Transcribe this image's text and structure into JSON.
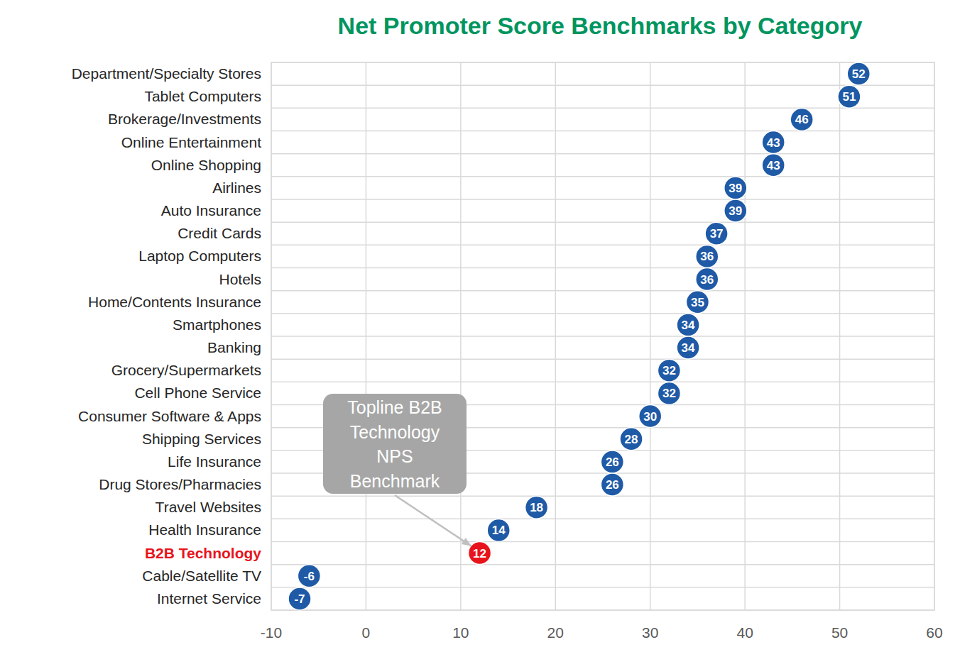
{
  "chart_data": {
    "type": "dot",
    "title": "Net Promoter Score Benchmarks by Category",
    "orientation": "horizontal",
    "categories": [
      "Department/Specialty Stores",
      "Tablet Computers",
      "Brokerage/Investments",
      "Online Entertainment",
      "Online Shopping",
      "Airlines",
      "Auto Insurance",
      "Credit Cards",
      "Laptop Computers",
      "Hotels",
      "Home/Contents Insurance",
      "Smartphones",
      "Banking",
      "Grocery/Supermarkets",
      "Cell Phone Service",
      "Consumer Software & Apps",
      "Shipping Services",
      "Life Insurance",
      "Drug Stores/Pharmacies",
      "Travel Websites",
      "Health Insurance",
      "B2B Technology",
      "Cable/Satellite TV",
      "Internet Service"
    ],
    "values": [
      52,
      51,
      46,
      43,
      43,
      39,
      39,
      37,
      36,
      36,
      35,
      34,
      34,
      32,
      32,
      30,
      28,
      26,
      26,
      18,
      14,
      12,
      -6,
      -7
    ],
    "colors": [
      "#1f5aa6",
      "#1f5aa6",
      "#1f5aa6",
      "#1f5aa6",
      "#1f5aa6",
      "#1f5aa6",
      "#1f5aa6",
      "#1f5aa6",
      "#1f5aa6",
      "#1f5aa6",
      "#1f5aa6",
      "#1f5aa6",
      "#1f5aa6",
      "#1f5aa6",
      "#1f5aa6",
      "#1f5aa6",
      "#1f5aa6",
      "#1f5aa6",
      "#1f5aa6",
      "#1f5aa6",
      "#1f5aa6",
      "#e8141c",
      "#1f5aa6",
      "#1f5aa6"
    ],
    "xlim": [
      -10,
      60
    ],
    "xticks": [
      -10,
      0,
      10,
      20,
      30,
      40,
      50,
      60
    ],
    "grid": true,
    "data_labels": true,
    "annotations": [
      {
        "text": "Topline B2B Technology NPS Benchmark",
        "target": "B2B Technology"
      }
    ]
  }
}
